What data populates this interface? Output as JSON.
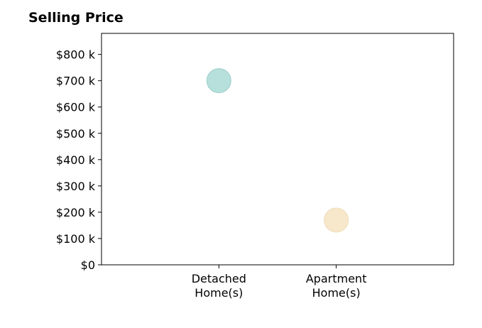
{
  "chart_data": {
    "type": "scatter",
    "title": "Selling Price",
    "categories": [
      "Detached\nHome(s)",
      "Apartment\nHome(s)"
    ],
    "y_ticks": [
      0,
      100,
      200,
      300,
      400,
      500,
      600,
      700,
      800
    ],
    "y_tick_labels": [
      "$0",
      "$100 k",
      "$200 k",
      "$300 k",
      "$400 k",
      "$500 k",
      "$600 k",
      "$700 k",
      "$800 k"
    ],
    "ylim": [
      0,
      880
    ],
    "x_range": [
      -1,
      2
    ],
    "values": [
      700,
      170
    ],
    "point_colors": [
      "#b7dfdb",
      "#f7e8cc"
    ],
    "point_stroke_colors": [
      "#9ccfc9",
      "#efdcb5"
    ],
    "grid": false,
    "xlabel": "",
    "ylabel": ""
  }
}
